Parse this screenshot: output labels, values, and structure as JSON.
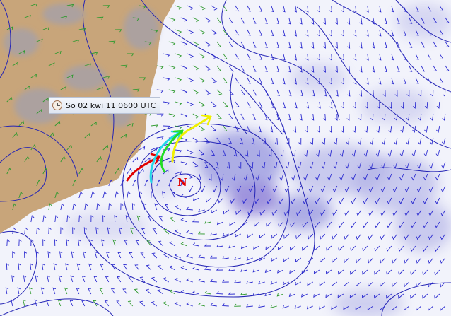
{
  "map": {
    "timestamp_label": "So 02 kwi 11 0600 UTC",
    "timestamp_icon": "clock-icon",
    "pressure_center_label": "N",
    "colors": {
      "land": "#c8a57a",
      "sea": "#f2f3fb",
      "precipitation": "#7f7fd6",
      "isobars": "#2424b4",
      "wind_barbs_sea": "#2b2bd0",
      "wind_barbs_land": "#2f9a2f",
      "route_red": "#e00000",
      "route_cyan": "#22d8e8",
      "route_green": "#22dd22",
      "route_yellow": "#f0f000",
      "pressure_center": "#e00000"
    },
    "routes": [
      "red",
      "cyan",
      "green",
      "yellow"
    ]
  }
}
